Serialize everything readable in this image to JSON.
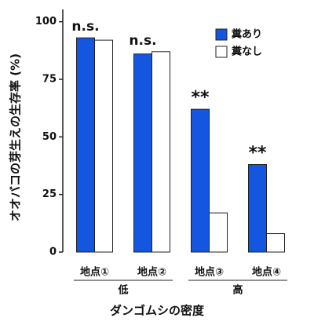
{
  "chart_data": {
    "type": "bar",
    "y_label": "オオバコの芽生えの生存率 (%)",
    "x_label": "ダンゴムシの密度",
    "categories": [
      "地点①",
      "地点②",
      "地点③",
      "地点④"
    ],
    "series": [
      {
        "name": "糞あり",
        "color": "#1456e0",
        "values": [
          93,
          86,
          62,
          38
        ]
      },
      {
        "name": "糞なし",
        "color": "#ffffff",
        "values": [
          92,
          87,
          17,
          8
        ]
      }
    ],
    "annotations": [
      "n.s.",
      "n.s.",
      "**",
      "**"
    ],
    "groups": [
      {
        "label": "低",
        "size": 2
      },
      {
        "label": "高",
        "size": 2
      }
    ],
    "ylim": [
      0,
      105
    ],
    "yticks": [
      0,
      25,
      50,
      75,
      100
    ],
    "legend": "top-right"
  }
}
